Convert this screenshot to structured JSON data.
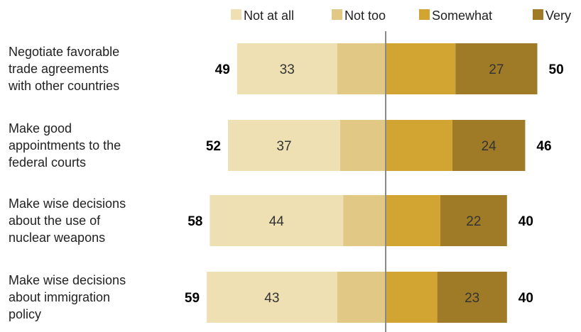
{
  "chart_data": {
    "type": "bar",
    "orientation": "horizontal",
    "stacked": "diverging",
    "legend": {
      "placement": "top",
      "entries": [
        {
          "name": "Not at all",
          "color": "#efe0b3"
        },
        {
          "name": "Not too",
          "color": "#e2c885"
        },
        {
          "name": "Somewhat",
          "color": "#d2a532"
        },
        {
          "name": "Very",
          "color": "#a07b27"
        }
      ]
    },
    "categories": [
      [
        "Negotiate favorable",
        "trade agreements",
        "with other countries"
      ],
      [
        "Make good",
        "appointments to the",
        "federal courts"
      ],
      [
        "Make wise decisions",
        "about the use of",
        "nuclear weapons"
      ],
      [
        "Make wise decisions",
        "about immigration",
        "policy"
      ]
    ],
    "series": [
      {
        "name": "Not at all",
        "values": [
          33,
          37,
          44,
          43
        ]
      },
      {
        "name": "Not too",
        "values": [
          16,
          15,
          14,
          16
        ]
      },
      {
        "name": "Somewhat",
        "values": [
          23,
          22,
          18,
          17
        ]
      },
      {
        "name": "Very",
        "values": [
          27,
          24,
          22,
          23
        ]
      }
    ],
    "net_negative": [
      49,
      52,
      58,
      59
    ],
    "net_positive": [
      50,
      46,
      40,
      40
    ]
  }
}
